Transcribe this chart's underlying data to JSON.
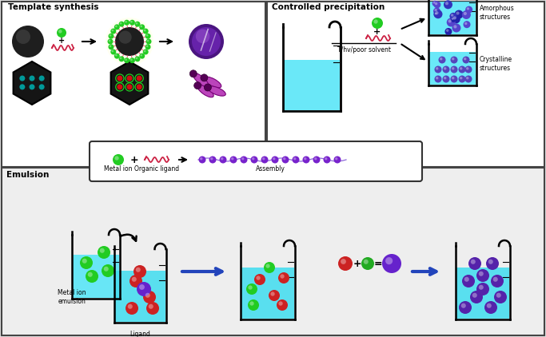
{
  "bg_color": "#e0e0e0",
  "top_bg": "#ffffff",
  "bot_bg": "#f0f0f0",
  "cyan_water": "#55e8f8",
  "purple_main": "#6622bb",
  "green_dot": "#22cc22",
  "red_dot": "#cc2222",
  "blue_dot": "#4444cc",
  "magenta_tube": "#bb44bb",
  "dark": "#1a1a1a",
  "teal": "#009999",
  "title_template": "Template synthesis",
  "title_precip": "Controlled precipitation",
  "title_emulsion": "Emulsion",
  "lbl_amorphous": "Amorphous\nstructures",
  "lbl_crystalline": "Crystalline\nstructures",
  "lbl_metal": "Metal ion",
  "lbl_ligand": "Organic ligand",
  "lbl_assembly": "Assembly",
  "lbl_metal_em": "Metal ion\nemulsion",
  "lbl_ligand_em": "Ligand\nemulsion",
  "lbl_thv": "T/hv/poor solvent"
}
